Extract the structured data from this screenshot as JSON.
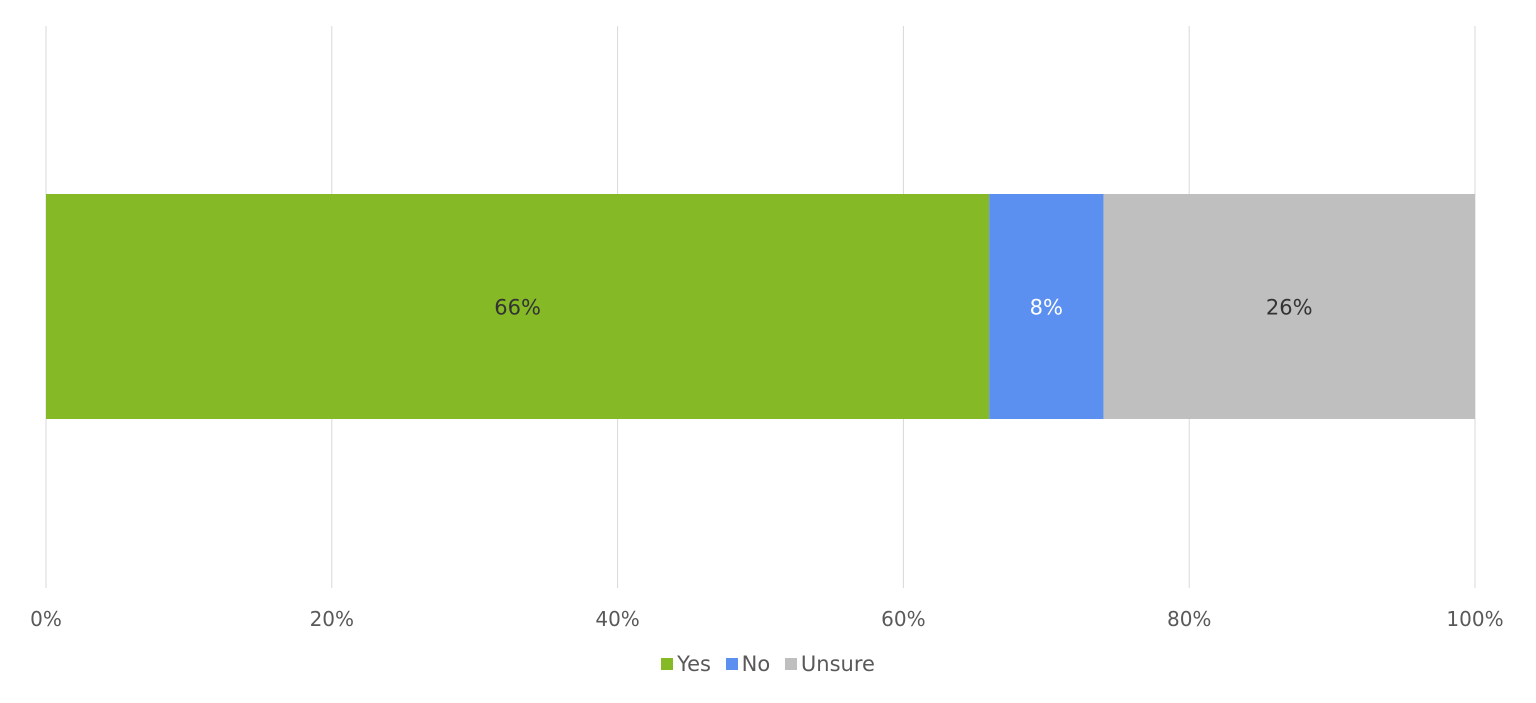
{
  "chart_data": {
    "type": "bar",
    "orientation": "horizontal",
    "stacked": "percent",
    "categories": [
      ""
    ],
    "series": [
      {
        "name": "Yes",
        "values": [
          66
        ],
        "label": "66%",
        "color": "#85BA26",
        "label_color": "#333333"
      },
      {
        "name": "No",
        "values": [
          8
        ],
        "label": "8%",
        "color": "#5B8FF0",
        "label_color": "#ffffff"
      },
      {
        "name": "Unsure",
        "values": [
          26
        ],
        "label": "26%",
        "color": "#BFBFBF",
        "label_color": "#333333"
      }
    ],
    "xlim": [
      0,
      100
    ],
    "x_ticks": [
      "0%",
      "20%",
      "40%",
      "60%",
      "80%",
      "100%"
    ],
    "grid": true,
    "legend_position": "bottom"
  }
}
